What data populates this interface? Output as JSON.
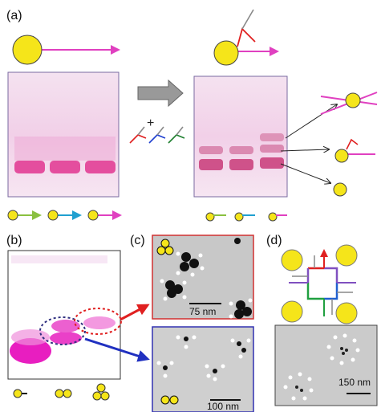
{
  "panels": {
    "a": {
      "label": "(a)",
      "plus": "+"
    },
    "b": {
      "label": "(b)"
    },
    "c": {
      "label": "(c)",
      "scale_bars": [
        "75 nm",
        "100 nm"
      ]
    },
    "d": {
      "label": "(d)",
      "scale_bar": "150 nm"
    }
  }
}
